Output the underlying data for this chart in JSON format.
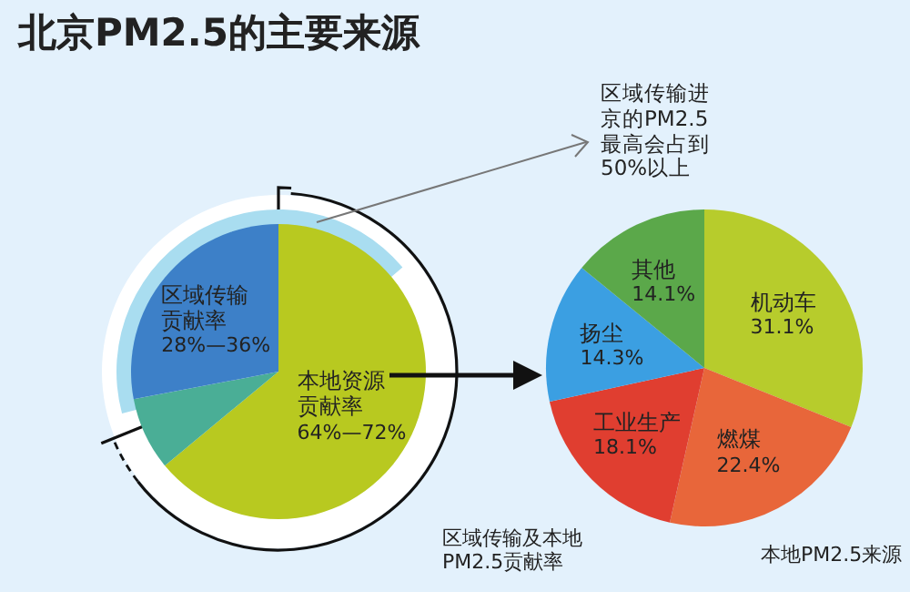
{
  "chart_data": [
    {
      "type": "pie",
      "title": "北京PM2.5的主要来源",
      "categories": [
        "本地资源贡献率",
        null,
        "区域传输贡献率"
      ],
      "values": [
        64,
        8,
        28
      ],
      "colors": [
        "#b8c920",
        "#4aae96",
        "#3d80c8"
      ],
      "value_labels": [
        "64%—72%",
        null,
        "28%—36%"
      ],
      "annotations": [
        "区域传输进京的PM2.5最高会占到50%以上",
        "区域传输及本地PM2.5贡献率"
      ]
    },
    {
      "type": "pie",
      "categories": [
        "机动车",
        "燃煤",
        "工业生产",
        "扬尘",
        "其他"
      ],
      "values": [
        31.1,
        22.4,
        18.1,
        14.3,
        14.1
      ],
      "colors": [
        "#b7cc2c",
        "#e8663a",
        "#e03e30",
        "#3b9fe2",
        "#5ba84a"
      ],
      "value_labels": [
        "31.1%",
        "22.4%",
        "18.1%",
        "14.3%",
        "14.1%"
      ],
      "annotations": [
        "本地PM2.5来源"
      ]
    }
  ]
}
